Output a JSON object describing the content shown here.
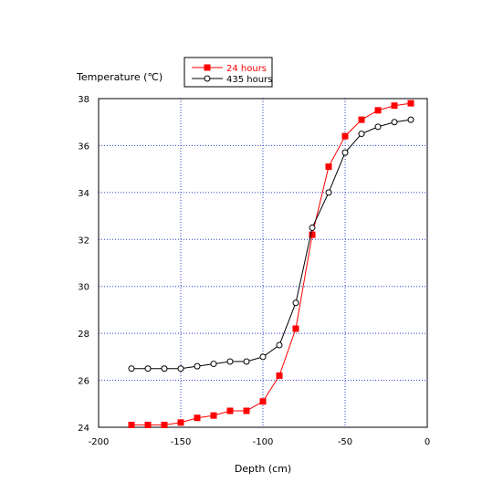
{
  "chart_data": {
    "type": "line",
    "xlabel": "Depth (cm)",
    "ylabel": "Temperature (℃)",
    "xlim": [
      -200,
      0
    ],
    "ylim": [
      24,
      38
    ],
    "xticks": [
      -200,
      -150,
      -100,
      -50,
      0
    ],
    "yticks": [
      24,
      26,
      28,
      30,
      32,
      34,
      36,
      38
    ],
    "grid": true,
    "legend": "top-center",
    "series": [
      {
        "name": "24 hours",
        "color": "#ff0000",
        "marker": "filled-square",
        "x": [
          -180,
          -170,
          -160,
          -150,
          -140,
          -130,
          -120,
          -110,
          -100,
          -90,
          -80,
          -70,
          -60,
          -50,
          -40,
          -30,
          -20,
          -10
        ],
        "y": [
          24.1,
          24.1,
          24.1,
          24.2,
          24.4,
          24.5,
          24.7,
          24.7,
          25.1,
          26.2,
          28.2,
          32.2,
          35.1,
          36.4,
          37.1,
          37.5,
          37.7,
          37.8
        ]
      },
      {
        "name": "435 hours",
        "color": "#000000",
        "marker": "open-circle",
        "x": [
          -180,
          -170,
          -160,
          -150,
          -140,
          -130,
          -120,
          -110,
          -100,
          -90,
          -80,
          -70,
          -60,
          -50,
          -40,
          -30,
          -20,
          -10
        ],
        "y": [
          26.5,
          26.5,
          26.5,
          26.5,
          26.6,
          26.7,
          26.8,
          26.8,
          27.0,
          27.5,
          29.3,
          32.5,
          34.0,
          35.7,
          36.5,
          36.8,
          37.0,
          37.1
        ]
      }
    ]
  }
}
